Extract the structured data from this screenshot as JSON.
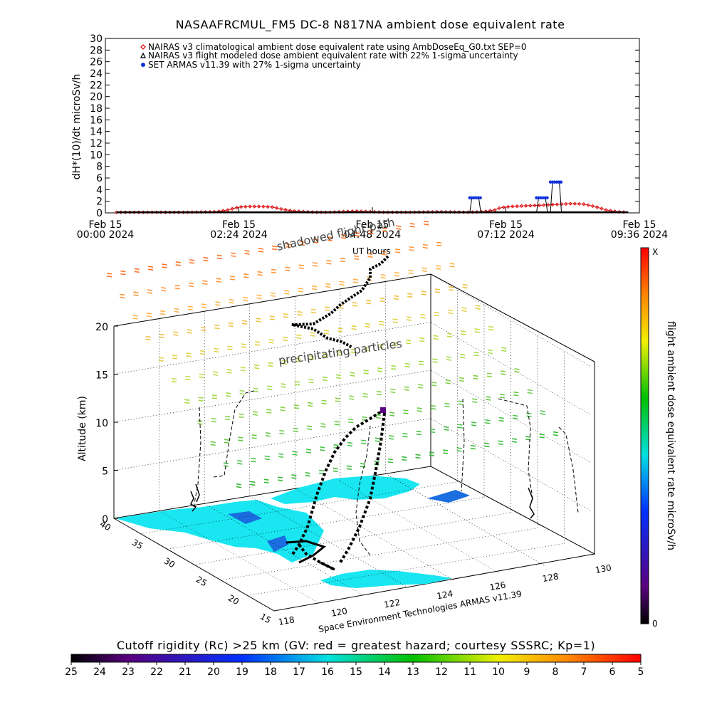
{
  "chart_data": [
    {
      "type": "line",
      "title": "NASAAFRCMUL_FM5 DC-8   N817NA ambient dose equivalent rate",
      "ylabel": "dH*(10)/dt microSv/h",
      "ylim": [
        0,
        30
      ],
      "yticks": [
        "0",
        "2",
        "4",
        "6",
        "8",
        "10",
        "12",
        "14",
        "16",
        "18",
        "20",
        "22",
        "24",
        "26",
        "28",
        "30"
      ],
      "xticks": [
        {
          "day": "Feb 15",
          "time": "00:00 2024"
        },
        {
          "day": "Feb 15",
          "time": "02:24 2024"
        },
        {
          "day": "Feb 15",
          "time": "04:48 2024"
        },
        {
          "day": "Feb 15",
          "time": "07:12 2024"
        },
        {
          "day": "Feb 15",
          "time": "09:36 2024"
        }
      ],
      "xlim_hours": [
        0,
        9.6
      ],
      "series": [
        {
          "name": "NAIRAS v3 climatological ambient dose equivalent rate using AmbDoseEq_G0.txt SEP=0",
          "marker": "diamond",
          "color": "#dd1111",
          "x_hours": [
            0.2,
            0.5,
            1.0,
            1.5,
            2.0,
            2.2,
            2.4,
            2.6,
            2.8,
            3.0,
            3.2,
            3.4,
            3.6,
            3.8,
            4.0,
            4.5,
            4.8,
            5.0,
            5.5,
            6.0,
            6.5,
            6.8,
            7.0,
            7.1,
            7.3,
            7.5,
            7.8,
            8.0,
            8.2,
            8.4,
            8.6,
            8.8,
            9.0,
            9.2,
            9.4
          ],
          "values": [
            0.1,
            0.1,
            0.1,
            0.1,
            0.2,
            0.5,
            1.0,
            1.1,
            1.1,
            1.0,
            0.6,
            0.3,
            0.2,
            0.1,
            0.1,
            0.3,
            0.2,
            0.1,
            0.1,
            0.2,
            0.1,
            0.2,
            0.5,
            0.9,
            1.1,
            1.2,
            1.3,
            1.4,
            1.5,
            1.6,
            1.5,
            1.1,
            0.5,
            0.2,
            0.1
          ]
        },
        {
          "name": "NAIRAS v3 flight modeled dose ambient equivalent rate with 22% 1-sigma uncertainty",
          "marker": "triangle",
          "color": "#000000",
          "x_hours": [
            0.2,
            1.0,
            2.0,
            3.0,
            4.0,
            5.0,
            6.0,
            7.0,
            8.0,
            9.0,
            9.4
          ],
          "values": [
            0.1,
            0.1,
            0.1,
            0.1,
            0.1,
            0.1,
            0.1,
            0.1,
            0.1,
            0.1,
            0.1
          ]
        },
        {
          "name": "SET ARMAS v11.39 with 27% 1-sigma uncertainty",
          "marker": "circle",
          "color": "#1133dd",
          "points": [
            {
              "x_start": 6.55,
              "x_end": 6.75,
              "value": 2.6
            },
            {
              "x_start": 7.75,
              "x_end": 7.95,
              "value": 2.6
            },
            {
              "x_start": 8.0,
              "x_end": 8.2,
              "value": 5.3
            }
          ]
        }
      ]
    },
    {
      "type": "heatmap",
      "ylabel": "Altitude (km)",
      "zticks": [
        "0",
        "5",
        "10",
        "15",
        "20"
      ],
      "lat_ticks": [
        "40",
        "35",
        "30",
        "25",
        "20",
        "15"
      ],
      "lon_ticks": [
        "118",
        "120",
        "122",
        "124",
        "126",
        "128",
        "130"
      ],
      "annotations": [
        "shadowed flight path",
        "UT hours",
        "precipitating particles"
      ],
      "credit": "Space Environment Technologies ARMAS v11.39",
      "colorbar": {
        "label": "flight ambient dose equivalent rate microSv/h",
        "top_label": "X",
        "bottom_label": "0"
      },
      "cutoff_bar": {
        "title": "Cutoff rigidity (Rc) >25 km (GV: red = greatest hazard; courtesy SSSRC; Kp=1)",
        "ticks": [
          "25",
          "24",
          "23",
          "22",
          "21",
          "20",
          "19",
          "18",
          "17",
          "16",
          "15",
          "14",
          "13",
          "12",
          "11",
          "10",
          "9",
          "8",
          "7",
          "6",
          "5"
        ]
      }
    }
  ]
}
